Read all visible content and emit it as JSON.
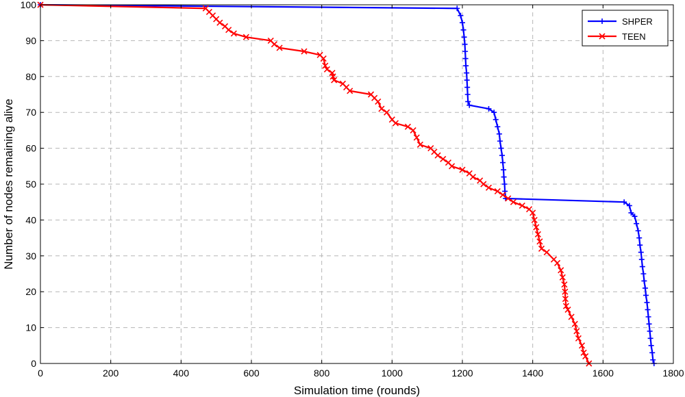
{
  "chart_data": {
    "type": "line",
    "title": "",
    "xlabel": "Simulation time (rounds)",
    "ylabel": "Number of nodes remaining alive",
    "xlim": [
      0,
      1800
    ],
    "ylim": [
      0,
      100
    ],
    "xticks": [
      0,
      200,
      400,
      600,
      800,
      1000,
      1200,
      1400,
      1600,
      1800
    ],
    "yticks": [
      0,
      10,
      20,
      30,
      40,
      50,
      60,
      70,
      80,
      90,
      100
    ],
    "grid": true,
    "legend_position": "top-right",
    "series": [
      {
        "name": "SHPER",
        "color": "#0000ff",
        "marker": "plus",
        "points": [
          [
            0,
            100
          ],
          [
            1185,
            99
          ],
          [
            1195,
            97
          ],
          [
            1200,
            95
          ],
          [
            1203,
            93
          ],
          [
            1205,
            91
          ],
          [
            1207,
            89
          ],
          [
            1208,
            87
          ],
          [
            1209,
            85
          ],
          [
            1210,
            83
          ],
          [
            1212,
            81
          ],
          [
            1213,
            79
          ],
          [
            1214,
            77
          ],
          [
            1215,
            75
          ],
          [
            1216,
            73
          ],
          [
            1220,
            72
          ],
          [
            1275,
            71
          ],
          [
            1290,
            70
          ],
          [
            1295,
            68
          ],
          [
            1300,
            66
          ],
          [
            1305,
            64
          ],
          [
            1307,
            62
          ],
          [
            1310,
            60
          ],
          [
            1313,
            58
          ],
          [
            1315,
            56
          ],
          [
            1317,
            54
          ],
          [
            1318,
            52
          ],
          [
            1320,
            50
          ],
          [
            1321,
            48
          ],
          [
            1323,
            46
          ],
          [
            1660,
            45
          ],
          [
            1675,
            44
          ],
          [
            1680,
            42
          ],
          [
            1690,
            41
          ],
          [
            1695,
            39
          ],
          [
            1700,
            37
          ],
          [
            1703,
            35
          ],
          [
            1705,
            33
          ],
          [
            1708,
            31
          ],
          [
            1710,
            29
          ],
          [
            1712,
            27
          ],
          [
            1715,
            25
          ],
          [
            1717,
            23
          ],
          [
            1720,
            21
          ],
          [
            1722,
            19
          ],
          [
            1725,
            17
          ],
          [
            1727,
            15
          ],
          [
            1729,
            13
          ],
          [
            1731,
            11
          ],
          [
            1733,
            9
          ],
          [
            1735,
            7
          ],
          [
            1737,
            5
          ],
          [
            1740,
            3
          ],
          [
            1742,
            1
          ],
          [
            1745,
            0
          ]
        ]
      },
      {
        "name": "TEEN",
        "color": "#ff0000",
        "marker": "x",
        "points": [
          [
            0,
            100
          ],
          [
            470,
            99
          ],
          [
            480,
            98
          ],
          [
            490,
            97
          ],
          [
            500,
            96
          ],
          [
            510,
            95
          ],
          [
            525,
            94
          ],
          [
            535,
            93
          ],
          [
            550,
            92
          ],
          [
            585,
            91
          ],
          [
            655,
            90
          ],
          [
            665,
            89
          ],
          [
            680,
            88
          ],
          [
            750,
            87
          ],
          [
            795,
            86
          ],
          [
            805,
            85
          ],
          [
            810,
            83
          ],
          [
            815,
            82
          ],
          [
            830,
            81
          ],
          [
            832,
            80
          ],
          [
            835,
            79
          ],
          [
            860,
            78
          ],
          [
            870,
            77
          ],
          [
            880,
            76
          ],
          [
            940,
            75
          ],
          [
            950,
            74
          ],
          [
            960,
            73
          ],
          [
            970,
            71
          ],
          [
            985,
            70
          ],
          [
            1000,
            68
          ],
          [
            1010,
            67
          ],
          [
            1045,
            66
          ],
          [
            1060,
            65
          ],
          [
            1070,
            63
          ],
          [
            1080,
            61
          ],
          [
            1110,
            60
          ],
          [
            1120,
            59
          ],
          [
            1130,
            58
          ],
          [
            1145,
            57
          ],
          [
            1160,
            56
          ],
          [
            1170,
            55
          ],
          [
            1200,
            54
          ],
          [
            1220,
            53
          ],
          [
            1230,
            52
          ],
          [
            1250,
            51
          ],
          [
            1260,
            50
          ],
          [
            1275,
            49
          ],
          [
            1300,
            48
          ],
          [
            1315,
            47
          ],
          [
            1330,
            46
          ],
          [
            1345,
            45
          ],
          [
            1370,
            44
          ],
          [
            1390,
            43
          ],
          [
            1400,
            42
          ],
          [
            1405,
            40
          ],
          [
            1410,
            38
          ],
          [
            1415,
            36
          ],
          [
            1420,
            34
          ],
          [
            1425,
            32
          ],
          [
            1440,
            31
          ],
          [
            1460,
            29
          ],
          [
            1470,
            28
          ],
          [
            1480,
            26
          ],
          [
            1485,
            24
          ],
          [
            1490,
            22
          ],
          [
            1492,
            20
          ],
          [
            1493,
            18
          ],
          [
            1495,
            16
          ],
          [
            1500,
            15
          ],
          [
            1510,
            13
          ],
          [
            1520,
            11
          ],
          [
            1525,
            9
          ],
          [
            1530,
            7
          ],
          [
            1540,
            5
          ],
          [
            1545,
            3
          ],
          [
            1550,
            2
          ],
          [
            1560,
            0
          ]
        ]
      }
    ]
  }
}
